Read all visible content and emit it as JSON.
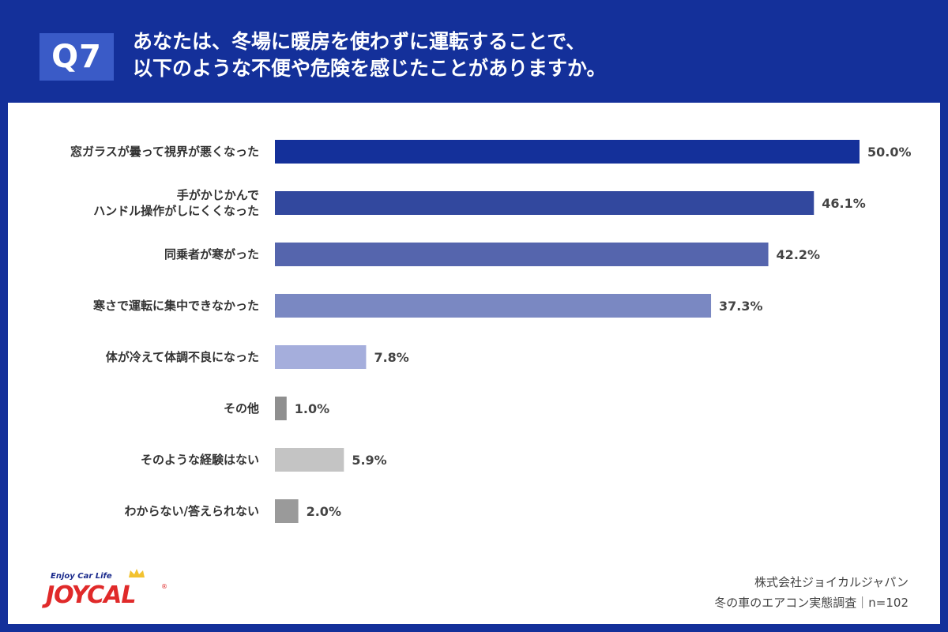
{
  "header": {
    "question_number": "Q7",
    "title_line1": "あなたは、冬場に暖房を使わずに運転することで、",
    "title_line2": "以下のような不便や危険を感じたことがありますか。"
  },
  "chart_data": {
    "type": "bar",
    "orientation": "horizontal",
    "categories": [
      [
        "窓ガラスが曇って視界が悪くなった"
      ],
      [
        "手がかじかんで",
        "ハンドル操作がしにくくなった"
      ],
      [
        "同乗者が寒がった"
      ],
      [
        "寒さで運転に集中できなかった"
      ],
      [
        "体が冷えて体調不良になった"
      ],
      [
        "その他"
      ],
      [
        "そのような経験はない"
      ],
      [
        "わからない/答えられない"
      ]
    ],
    "values": [
      50.0,
      46.1,
      42.2,
      37.3,
      7.8,
      1.0,
      5.9,
      2.0
    ],
    "value_labels": [
      "50.0%",
      "46.1%",
      "42.2%",
      "37.3%",
      "7.8%",
      "1.0%",
      "5.9%",
      "2.0%"
    ],
    "colors": [
      "#14309a",
      "#32489e",
      "#5565ad",
      "#7a88c2",
      "#a5aedc",
      "#8f8f8f",
      "#c4c4c4",
      "#9a9a9a"
    ],
    "xlim": [
      0,
      50
    ],
    "grid": false,
    "legend": "none"
  },
  "logo": {
    "tagline": "Enjoy Car Life",
    "wordmark": "JOYCAL",
    "colors": {
      "wordmark": "#e02a2a",
      "tagline": "#1a2a8c",
      "crown": "#f2c230"
    }
  },
  "source": {
    "company": "株式会社ジョイカルジャパン",
    "survey": "冬の車のエアコン実態調査｜n=102"
  }
}
